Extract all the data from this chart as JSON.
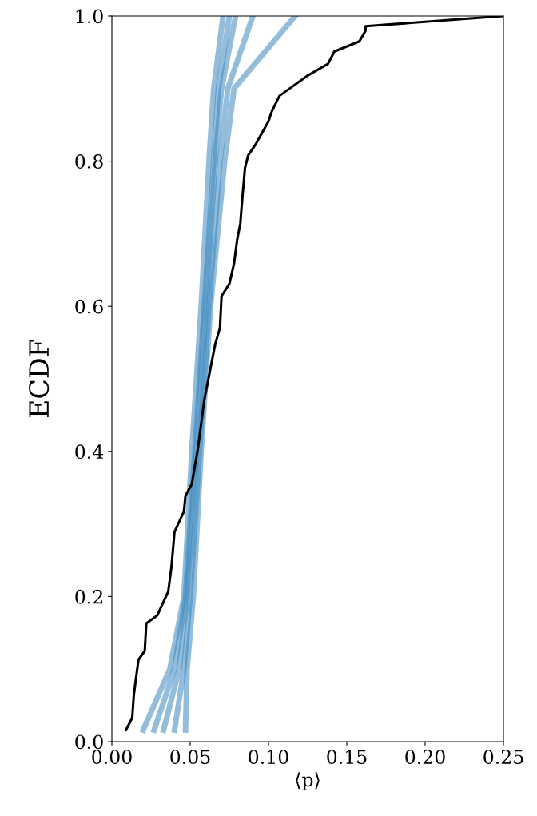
{
  "chart_data": {
    "type": "line",
    "xlabel": "⟨p⟩",
    "ylabel": "ECDF",
    "xlim": [
      0,
      0.25
    ],
    "ylim": [
      0,
      1
    ],
    "xticks": [
      {
        "value": 0,
        "label": "0.00"
      },
      {
        "value": 0.05,
        "label": "0.05"
      },
      {
        "value": 0.1,
        "label": "0.10"
      },
      {
        "value": 0.15,
        "label": "0.15"
      },
      {
        "value": 0.2,
        "label": "0.20"
      },
      {
        "value": 0.25,
        "label": "0.25"
      }
    ],
    "yticks": [
      {
        "value": 0,
        "label": "0.0"
      },
      {
        "value": 0.2,
        "label": "0.2"
      },
      {
        "value": 0.4,
        "label": "0.4"
      },
      {
        "value": 0.6,
        "label": "0.6"
      },
      {
        "value": 0.8,
        "label": "0.8"
      },
      {
        "value": 1,
        "label": "1.0"
      }
    ],
    "grid": false,
    "marker": "none",
    "line_style": "solid",
    "series": [
      {
        "color": "#3a87be",
        "x": [
          0.02,
          0.037,
          0.046,
          0.051,
          0.057,
          0.062,
          0.065,
          0.071
        ],
        "values": [
          0.016,
          0.1,
          0.2,
          0.4,
          0.6,
          0.8,
          0.9,
          1.0
        ]
      },
      {
        "color": "#3a87be",
        "x": [
          0.027,
          0.04,
          0.047,
          0.053,
          0.059,
          0.065,
          0.068,
          0.075
        ],
        "values": [
          0.016,
          0.1,
          0.2,
          0.4,
          0.6,
          0.8,
          0.9,
          1.0
        ]
      },
      {
        "color": "#3a87be",
        "x": [
          0.033,
          0.043,
          0.048,
          0.054,
          0.06,
          0.066,
          0.07,
          0.079
        ],
        "values": [
          0.016,
          0.1,
          0.2,
          0.4,
          0.6,
          0.8,
          0.9,
          1.0
        ]
      },
      {
        "color": "#3a87be",
        "x": [
          0.04,
          0.046,
          0.05,
          0.056,
          0.062,
          0.069,
          0.074,
          0.09
        ],
        "values": [
          0.016,
          0.1,
          0.2,
          0.4,
          0.6,
          0.8,
          0.9,
          1.0
        ]
      },
      {
        "color": "#3a87be",
        "x": [
          0.047,
          0.048,
          0.052,
          0.057,
          0.063,
          0.072,
          0.078,
          0.117
        ],
        "values": [
          0.016,
          0.1,
          0.2,
          0.4,
          0.6,
          0.8,
          0.9,
          1.0
        ]
      },
      {
        "color": "#000000",
        "x": [
          0.009,
          0.013,
          0.014,
          0.015,
          0.017,
          0.021,
          0.022,
          0.029,
          0.036,
          0.038,
          0.04,
          0.046,
          0.047,
          0.051,
          0.055,
          0.059,
          0.063,
          0.066,
          0.069,
          0.07,
          0.075,
          0.078,
          0.08,
          0.082,
          0.083,
          0.085,
          0.087,
          0.092,
          0.1,
          0.102,
          0.107,
          0.125,
          0.138,
          0.142,
          0.158,
          0.162,
          0.162,
          0.25
        ],
        "values": [
          0.016,
          0.033,
          0.064,
          0.081,
          0.113,
          0.125,
          0.163,
          0.174,
          0.207,
          0.24,
          0.289,
          0.317,
          0.339,
          0.355,
          0.405,
          0.471,
          0.515,
          0.548,
          0.57,
          0.614,
          0.631,
          0.659,
          0.692,
          0.714,
          0.742,
          0.791,
          0.808,
          0.824,
          0.855,
          0.868,
          0.89,
          0.918,
          0.934,
          0.951,
          0.965,
          0.98,
          0.986,
          1.0
        ]
      }
    ]
  }
}
